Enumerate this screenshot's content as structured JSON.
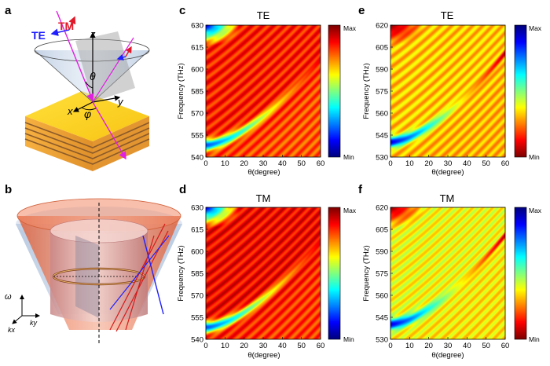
{
  "panels": {
    "a": {
      "label": "a",
      "te": "TE",
      "tm": "TM",
      "z": "z",
      "x": "x",
      "y": "y",
      "theta": "θ",
      "phi": "φ"
    },
    "b": {
      "label": "b",
      "omega": "ω",
      "kx": "kx",
      "ky": "ky"
    }
  },
  "colors": {
    "te_arrow": "#1e1eff",
    "tm_arrow": "#e0192a",
    "incident_ray": "#e020e0",
    "multilayer_top": "#ffd21e",
    "multilayer_side": "#f2a032",
    "multilayer_stripe": "#8a5a2a"
  },
  "chart_data": [
    {
      "id": "c",
      "label": "c",
      "type": "heatmap",
      "title": "TE",
      "xlabel": "θ(degree)",
      "ylabel": "Frequency (THz)",
      "xlim": [
        0,
        60
      ],
      "ylim": [
        540,
        630
      ],
      "xticks": [
        "0",
        "10",
        "20",
        "30",
        "40",
        "50",
        "60"
      ],
      "yticks": [
        "540",
        "555",
        "570",
        "585",
        "600",
        "615",
        "630"
      ],
      "colorbar": {
        "max": "Max",
        "min": "Min",
        "scheme": "jet",
        "inverted": false
      },
      "background_level": 0.85,
      "band": {
        "f0": 548,
        "f_end": 607,
        "low_level": 0.2,
        "high_level": 0.9
      }
    },
    {
      "id": "d",
      "label": "d",
      "type": "heatmap",
      "title": "TM",
      "xlabel": "θ(degree)",
      "ylabel": "Frequency (THz)",
      "xlim": [
        0,
        60
      ],
      "ylim": [
        540,
        630
      ],
      "xticks": [
        "0",
        "10",
        "20",
        "30",
        "40",
        "50",
        "60"
      ],
      "yticks": [
        "540",
        "555",
        "570",
        "585",
        "600",
        "615",
        "630"
      ],
      "colorbar": {
        "max": "Max",
        "min": "Min",
        "scheme": "jet",
        "inverted": false
      },
      "background_level": 0.88,
      "band": {
        "f0": 548,
        "f_end": 607,
        "low_level": 0.2,
        "high_level": 0.9
      }
    },
    {
      "id": "e",
      "label": "e",
      "type": "heatmap",
      "title": "TE",
      "xlabel": "θ(degree)",
      "ylabel": "Frequency (THz)",
      "xlim": [
        0,
        60
      ],
      "ylim": [
        530,
        620
      ],
      "xticks": [
        "0",
        "10",
        "20",
        "30",
        "40",
        "50",
        "60"
      ],
      "yticks": [
        "530",
        "545",
        "560",
        "575",
        "590",
        "605",
        "620"
      ],
      "colorbar": {
        "max": "Max",
        "min": "Min",
        "scheme": "jet",
        "inverted": true
      },
      "background_level": 0.32,
      "band": {
        "f0": 540,
        "f_end": 601,
        "low_level": 0.9,
        "high_level": 0.05
      }
    },
    {
      "id": "f",
      "label": "f",
      "type": "heatmap",
      "title": "TM",
      "xlabel": "θ(degree)",
      "ylabel": "Frequency (THz)",
      "xlim": [
        0,
        60
      ],
      "ylim": [
        530,
        620
      ],
      "xticks": [
        "0",
        "10",
        "20",
        "30",
        "40",
        "50",
        "60"
      ],
      "yticks": [
        "530",
        "545",
        "560",
        "575",
        "590",
        "605",
        "620"
      ],
      "colorbar": {
        "max": "Max",
        "min": "Min",
        "scheme": "jet",
        "inverted": true
      },
      "background_level": 0.38,
      "band": {
        "f0": 540,
        "f_end": 601,
        "low_level": 0.9,
        "high_level": 0.05
      }
    }
  ]
}
